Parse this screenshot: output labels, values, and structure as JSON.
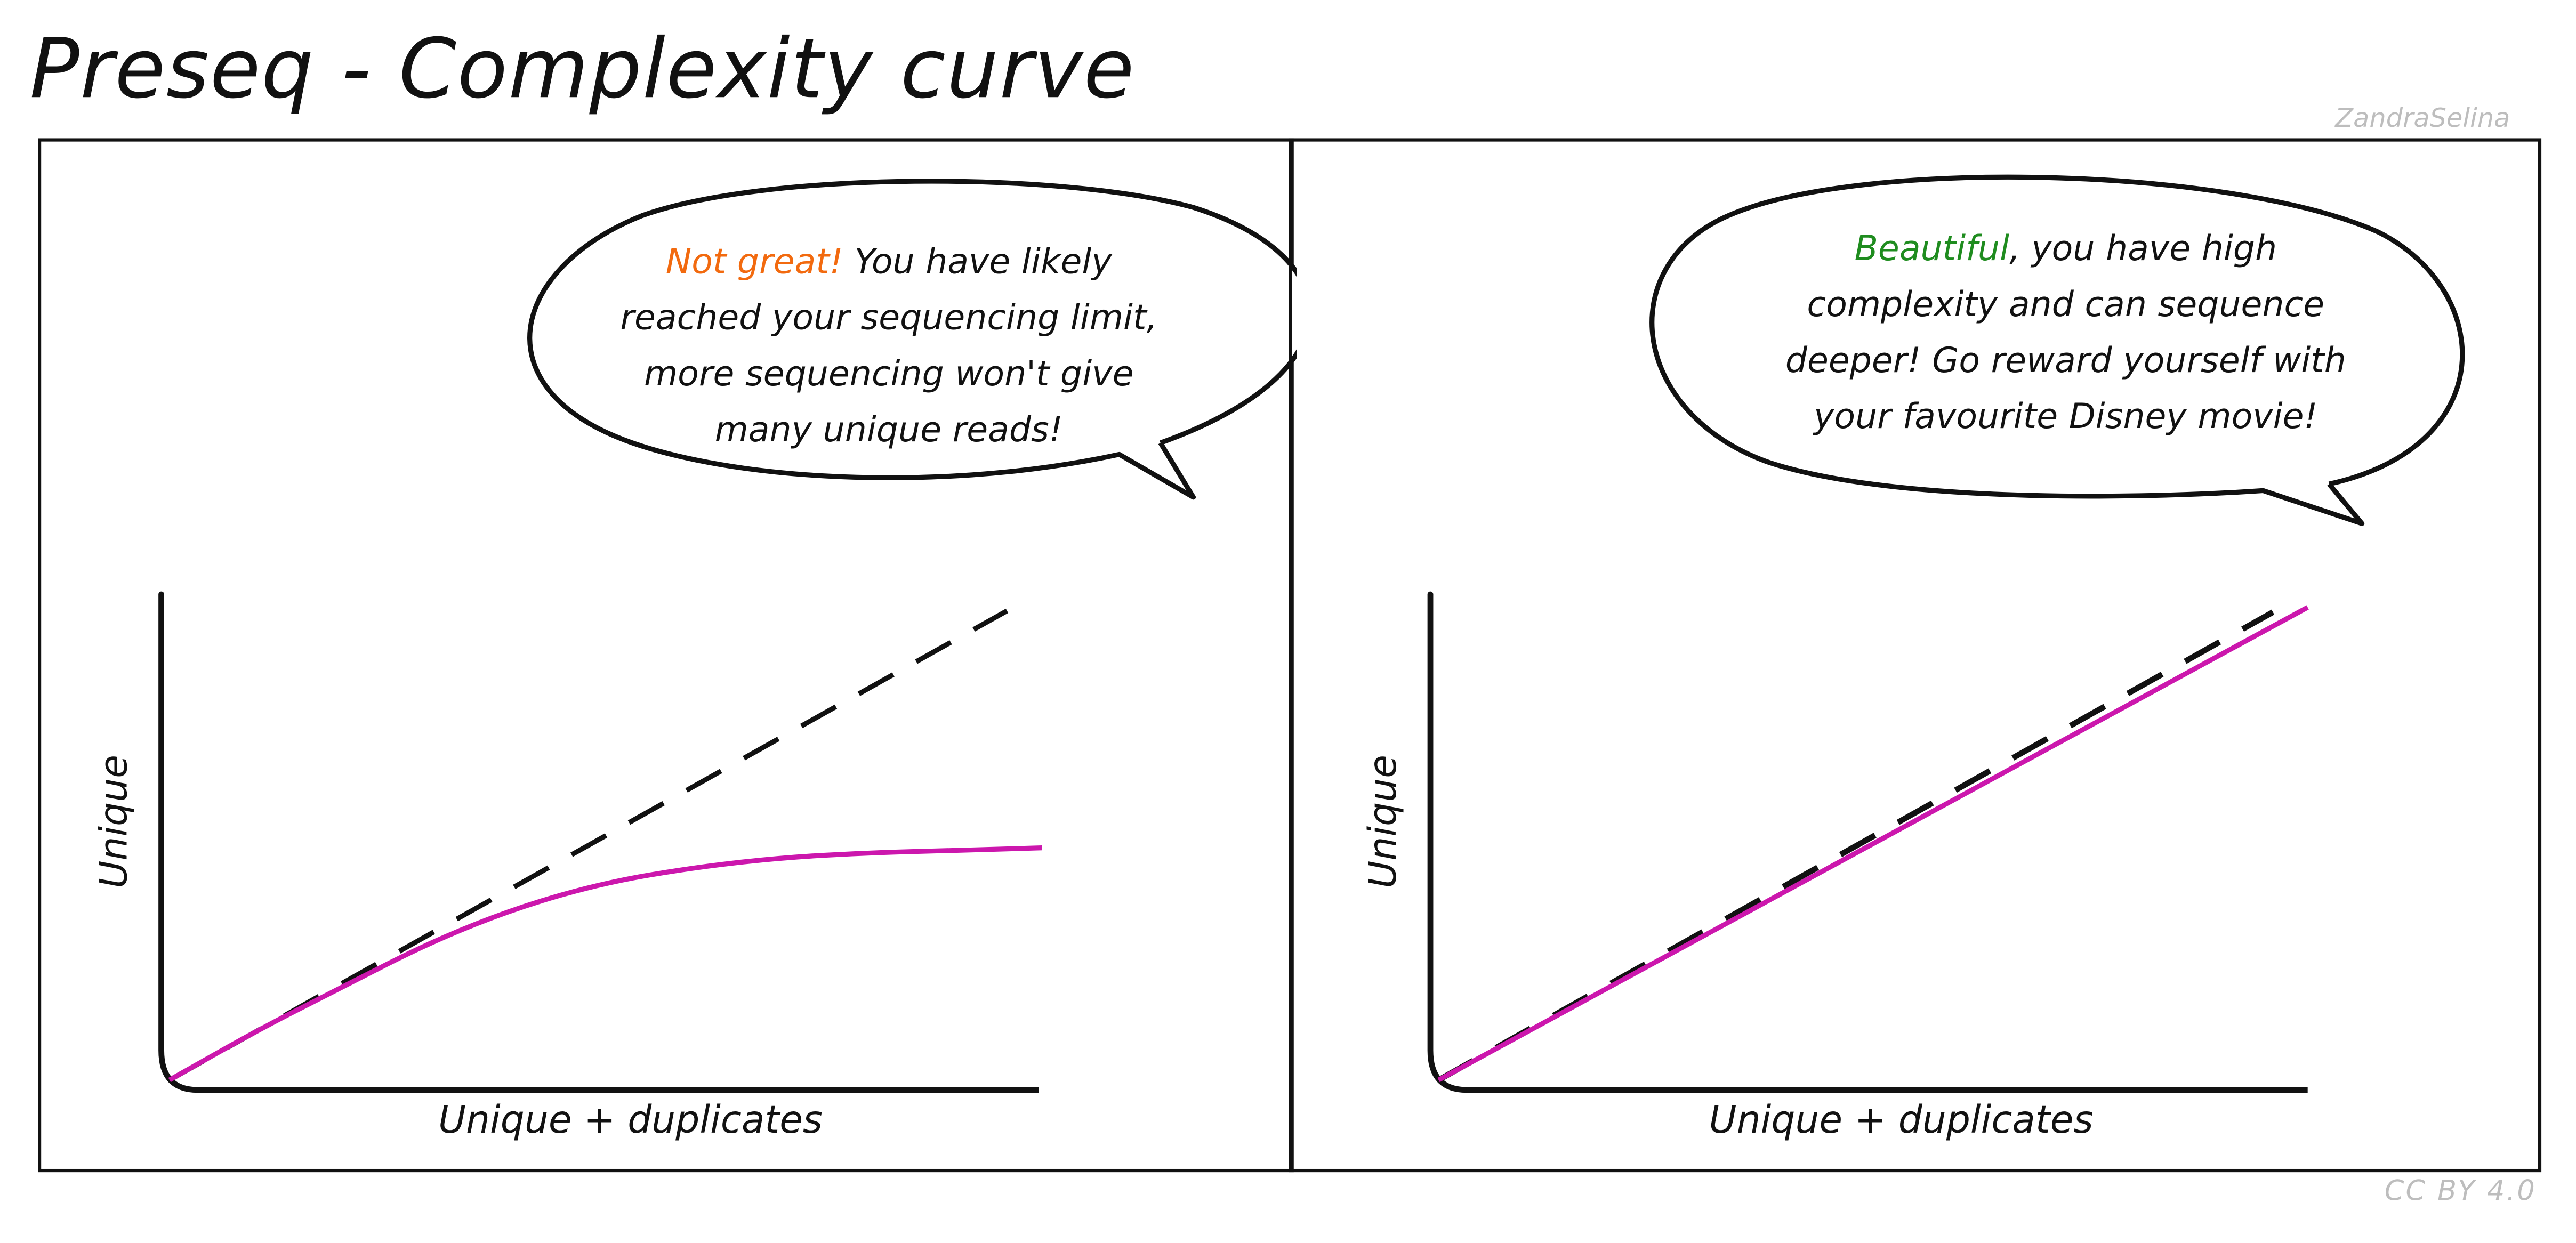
{
  "title": "Preseq - Complexity curve",
  "author": "ZandraSelina",
  "license": "CC BY 4.0",
  "colors": {
    "curve": "#cc17ad",
    "dashed_reference": "#111111",
    "highlight_bad": "#f26a0f",
    "highlight_good": "#1f8c1f"
  },
  "panels": [
    {
      "id": "low-complexity",
      "speech": {
        "highlight": "Not great!",
        "line1_rest": " You have likely",
        "line2": "reached your sequencing limit,",
        "line3": "more sequencing won't give",
        "line4": "many unique reads!"
      },
      "xlabel": "Unique + duplicates",
      "ylabel": "Unique"
    },
    {
      "id": "high-complexity",
      "speech": {
        "highlight": "Beautiful",
        "line1_rest": ", you have high",
        "line2": "complexity and can sequence",
        "line3": "deeper! Go reward yourself with",
        "line4": "your favourite Disney movie!"
      },
      "xlabel": "Unique + duplicates",
      "ylabel": "Unique"
    }
  ],
  "chart_data": [
    {
      "type": "line",
      "xlabel": "Unique + duplicates",
      "ylabel": "Unique",
      "xlim": [
        0,
        1
      ],
      "ylim": [
        0,
        1
      ],
      "axis_ticks": false,
      "series": [
        {
          "style": "solid",
          "color": "#cc17ad",
          "x": [
            0,
            0.1,
            0.2,
            0.3,
            0.4,
            0.5,
            0.6,
            0.7,
            0.8,
            0.9,
            1.0
          ],
          "y": [
            0,
            0.1,
            0.19,
            0.28,
            0.35,
            0.4,
            0.43,
            0.45,
            0.46,
            0.465,
            0.47
          ]
        },
        {
          "style": "dashed",
          "color": "#111111",
          "x": [
            0,
            0.96
          ],
          "y": [
            0,
            0.95
          ]
        }
      ]
    },
    {
      "type": "line",
      "xlabel": "Unique + duplicates",
      "ylabel": "Unique",
      "xlim": [
        0,
        1
      ],
      "ylim": [
        0,
        1
      ],
      "axis_ticks": false,
      "series": [
        {
          "style": "solid",
          "color": "#cc17ad",
          "x": [
            0,
            1.0
          ],
          "y": [
            0,
            0.97
          ]
        },
        {
          "style": "dashed",
          "color": "#111111",
          "x": [
            0,
            0.96
          ],
          "y": [
            0,
            0.96
          ]
        }
      ]
    }
  ]
}
